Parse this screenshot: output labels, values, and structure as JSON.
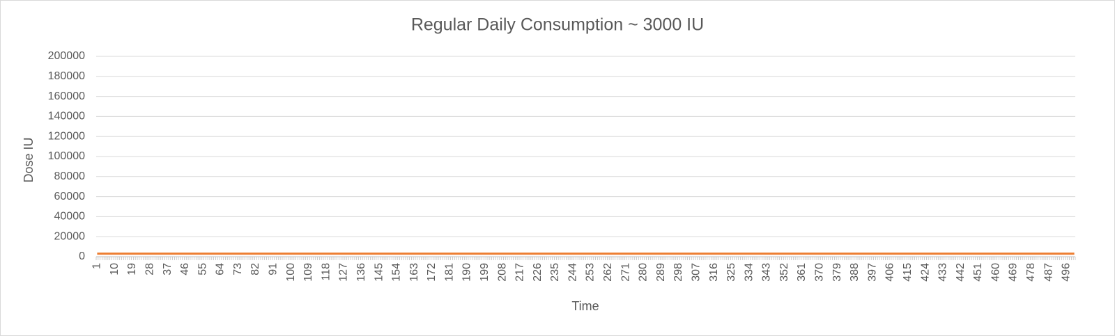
{
  "chart_data": {
    "type": "line",
    "title": "Regular Daily Consumption ~ 3000 IU",
    "x_label": "Time",
    "y_label": "Dose IU",
    "color": "#ed7d31",
    "grid": true,
    "ylim": [
      0,
      200000
    ],
    "yticks": [
      0,
      20000,
      40000,
      60000,
      80000,
      100000,
      120000,
      140000,
      160000,
      180000,
      200000
    ],
    "categories": [
      "1",
      null,
      null,
      null,
      null,
      null,
      null,
      null,
      null,
      "10",
      null,
      null,
      null,
      null,
      null,
      null,
      null,
      null,
      "19",
      null,
      null,
      null,
      null,
      null,
      null,
      null,
      null,
      "28",
      null,
      null,
      null,
      null,
      null,
      null,
      null,
      null,
      "37",
      null,
      null,
      null,
      null,
      null,
      null,
      null,
      null,
      "46",
      null,
      null,
      null,
      null,
      null,
      null,
      null,
      null,
      "55",
      null,
      null,
      null,
      null,
      null,
      null,
      null,
      null,
      "64",
      null,
      null,
      null,
      null,
      null,
      null,
      null,
      null,
      "73",
      null,
      null,
      null,
      null,
      null,
      null,
      null,
      null,
      "82",
      null,
      null,
      null,
      null,
      null,
      null,
      null,
      null,
      "91",
      null,
      null,
      null,
      null,
      null,
      null,
      null,
      null,
      "100",
      null,
      null,
      null,
      null,
      null,
      null,
      null,
      null,
      "109",
      null,
      null,
      null,
      null,
      null,
      null,
      null,
      null,
      "118",
      null,
      null,
      null,
      null,
      null,
      null,
      null,
      null,
      "127",
      null,
      null,
      null,
      null,
      null,
      null,
      null,
      null,
      "136",
      null,
      null,
      null,
      null,
      null,
      null,
      null,
      null,
      "145",
      null,
      null,
      null,
      null,
      null,
      null,
      null,
      null,
      "154",
      null,
      null,
      null,
      null,
      null,
      null,
      null,
      null,
      "163",
      null,
      null,
      null,
      null,
      null,
      null,
      null,
      null,
      "172",
      null,
      null,
      null,
      null,
      null,
      null,
      null,
      null,
      "181",
      null,
      null,
      null,
      null,
      null,
      null,
      null,
      null,
      "190",
      null,
      null,
      null,
      null,
      null,
      null,
      null,
      null,
      "199",
      null,
      null,
      null,
      null,
      null,
      null,
      null,
      null,
      "208",
      null,
      null,
      null,
      null,
      null,
      null,
      null,
      null,
      "217",
      null,
      null,
      null,
      null,
      null,
      null,
      null,
      null,
      "226",
      null,
      null,
      null,
      null,
      null,
      null,
      null,
      null,
      "235",
      null,
      null,
      null,
      null,
      null,
      null,
      null,
      null,
      "244",
      null,
      null,
      null,
      null,
      null,
      null,
      null,
      null,
      "253",
      null,
      null,
      null,
      null,
      null,
      null,
      null,
      null,
      "262",
      null,
      null,
      null,
      null,
      null,
      null,
      null,
      null,
      "271",
      null,
      null,
      null,
      null,
      null,
      null,
      null,
      null,
      "280",
      null,
      null,
      null,
      null,
      null,
      null,
      null,
      null,
      "289",
      null,
      null,
      null,
      null,
      null,
      null,
      null,
      null,
      "298",
      null,
      null,
      null,
      null,
      null,
      null,
      null,
      null,
      "307",
      null,
      null,
      null,
      null,
      null,
      null,
      null,
      null,
      "316",
      null,
      null,
      null,
      null,
      null,
      null,
      null,
      null,
      "325",
      null,
      null,
      null,
      null,
      null,
      null,
      null,
      null,
      "334",
      null,
      null,
      null,
      null,
      null,
      null,
      null,
      null,
      "343",
      null,
      null,
      null,
      null,
      null,
      null,
      null,
      null,
      "352",
      null,
      null,
      null,
      null,
      null,
      null,
      null,
      null,
      "361",
      null,
      null,
      null,
      null,
      null,
      null,
      null,
      null,
      "370",
      null,
      null,
      null,
      null,
      null,
      null,
      null,
      null,
      "379",
      null,
      null,
      null,
      null,
      null,
      null,
      null,
      null,
      "388",
      null,
      null,
      null,
      null,
      null,
      null,
      null,
      null,
      "397",
      null,
      null,
      null,
      null,
      null,
      null,
      null,
      null,
      "406",
      null,
      null,
      null,
      null,
      null,
      null,
      null,
      null,
      "415",
      null,
      null,
      null,
      null,
      null,
      null,
      null,
      null,
      "424",
      null,
      null,
      null,
      null,
      null,
      null,
      null,
      null,
      "433",
      null,
      null,
      null,
      null,
      null,
      null,
      null,
      null,
      "442",
      null,
      null,
      null,
      null,
      null,
      null,
      null,
      null,
      "451",
      null,
      null,
      null,
      null,
      null,
      null,
      null,
      null,
      "460",
      null,
      null,
      null,
      null,
      null,
      null,
      null,
      null,
      "469",
      null,
      null,
      null,
      null,
      null,
      null,
      null,
      null,
      "478",
      null,
      null,
      null,
      null,
      null,
      null,
      null,
      null,
      "487",
      null,
      null,
      null,
      null,
      null,
      null,
      null,
      null,
      "496",
      null,
      null,
      null,
      null
    ],
    "values": [
      3000,
      3000,
      3000,
      3000,
      3000,
      3000,
      3000,
      3000,
      3000,
      3000,
      3000,
      3000,
      3000,
      3000,
      3000,
      3000,
      3000,
      3000,
      3000,
      3000,
      3000,
      3000,
      3000,
      3000,
      3000,
      3000,
      3000,
      3000,
      3000,
      3000,
      3000,
      3000,
      3000,
      3000,
      3000,
      3000,
      3000,
      3000,
      3000,
      3000,
      3000,
      3000,
      3000,
      3000,
      3000,
      3000,
      3000,
      3000,
      3000,
      3000,
      3000,
      3000,
      3000,
      3000,
      3000,
      3000,
      3000,
      3000,
      3000,
      3000,
      3000,
      3000,
      3000,
      3000,
      3000,
      3000,
      3000,
      3000,
      3000,
      3000,
      3000,
      3000,
      3000,
      3000,
      3000,
      3000,
      3000,
      3000,
      3000,
      3000,
      3000,
      3000,
      3000,
      3000,
      3000,
      3000,
      3000,
      3000,
      3000,
      3000,
      3000,
      3000,
      3000,
      3000,
      3000,
      3000,
      3000,
      3000,
      3000,
      3000,
      3000,
      3000,
      3000,
      3000,
      3000,
      3000,
      3000,
      3000,
      3000,
      3000,
      3000,
      3000,
      3000,
      3000,
      3000,
      3000,
      3000,
      3000,
      3000,
      3000,
      3000,
      3000,
      3000,
      3000,
      3000,
      3000,
      3000,
      3000,
      3000,
      3000,
      3000,
      3000,
      3000,
      3000,
      3000,
      3000,
      3000,
      3000,
      3000,
      3000,
      3000,
      3000,
      3000,
      3000,
      3000,
      3000,
      3000,
      3000,
      3000,
      3000,
      3000,
      3000,
      3000,
      3000,
      3000,
      3000,
      3000,
      3000,
      3000,
      3000,
      3000,
      3000,
      3000,
      3000,
      3000,
      3000,
      3000,
      3000,
      3000,
      3000,
      3000,
      3000,
      3000,
      3000,
      3000,
      3000,
      3000,
      3000,
      3000,
      3000,
      3000,
      3000,
      3000,
      3000,
      3000,
      3000,
      3000,
      3000,
      3000,
      3000,
      3000,
      3000,
      3000,
      3000,
      3000,
      3000,
      3000,
      3000,
      3000,
      3000,
      3000,
      3000,
      3000,
      3000,
      3000,
      3000,
      3000,
      3000,
      3000,
      3000,
      3000,
      3000,
      3000,
      3000,
      3000,
      3000,
      3000,
      3000,
      3000,
      3000,
      3000,
      3000,
      3000,
      3000,
      3000,
      3000,
      3000,
      3000,
      3000,
      3000,
      3000,
      3000,
      3000,
      3000,
      3000,
      3000,
      3000,
      3000,
      3000,
      3000,
      3000,
      3000,
      3000,
      3000,
      3000,
      3000,
      3000,
      3000,
      3000,
      3000,
      3000,
      3000,
      3000,
      3000,
      3000,
      3000,
      3000,
      3000,
      3000,
      3000,
      3000,
      3000,
      3000,
      3000,
      3000,
      3000,
      3000,
      3000,
      3000,
      3000,
      3000,
      3000,
      3000,
      3000,
      3000,
      3000,
      3000,
      3000,
      3000,
      3000,
      3000,
      3000,
      3000,
      3000,
      3000,
      3000,
      3000,
      3000,
      3000,
      3000,
      3000,
      3000,
      3000,
      3000,
      3000,
      3000,
      3000,
      3000,
      3000,
      3000,
      3000,
      3000,
      3000,
      3000,
      3000,
      3000,
      3000,
      3000,
      3000,
      3000,
      3000,
      3000,
      3000,
      3000,
      3000,
      3000,
      3000,
      3000,
      3000,
      3000,
      3000,
      3000,
      3000,
      3000,
      3000,
      3000,
      3000,
      3000,
      3000,
      3000,
      3000,
      3000,
      3000,
      3000,
      3000,
      3000,
      3000,
      3000,
      3000,
      3000,
      3000,
      3000,
      3000,
      3000,
      3000,
      3000,
      3000,
      3000,
      3000,
      3000,
      3000,
      3000,
      3000,
      3000,
      3000,
      3000,
      3000,
      3000,
      3000,
      3000,
      3000,
      3000,
      3000,
      3000,
      3000,
      3000,
      3000,
      3000,
      3000,
      3000,
      3000,
      3000,
      3000,
      3000,
      3000,
      3000,
      3000,
      3000,
      3000,
      3000,
      3000,
      3000,
      3000,
      3000,
      3000,
      3000,
      3000,
      3000,
      3000,
      3000,
      3000,
      3000,
      3000,
      3000,
      3000,
      3000,
      3000,
      3000,
      3000,
      3000,
      3000,
      3000,
      3000,
      3000,
      3000,
      3000,
      3000,
      3000,
      3000,
      3000,
      3000,
      3000,
      3000,
      3000,
      3000,
      3000,
      3000,
      3000,
      3000,
      3000,
      3000,
      3000,
      3000,
      3000,
      3000,
      3000,
      3000,
      3000,
      3000,
      3000,
      3000,
      3000,
      3000,
      3000,
      3000,
      3000,
      3000,
      3000,
      3000,
      3000,
      3000,
      3000,
      3000,
      3000,
      3000,
      3000,
      3000,
      3000,
      3000,
      3000,
      3000,
      3000,
      3000,
      3000,
      3000,
      3000,
      3000,
      3000,
      3000,
      3000,
      3000,
      3000,
      3000,
      3000,
      3000,
      3000,
      3000,
      3000,
      3000,
      3000,
      3000,
      3000,
      3000,
      3000,
      3000,
      3000,
      3000,
      3000,
      3000,
      3000,
      3000,
      3000,
      3000,
      3000,
      3000,
      3000,
      3000,
      3000,
      3000,
      3000,
      3000,
      3000,
      3000,
      3000,
      3000,
      3000,
      3000,
      3000,
      3000,
      3000
    ]
  }
}
